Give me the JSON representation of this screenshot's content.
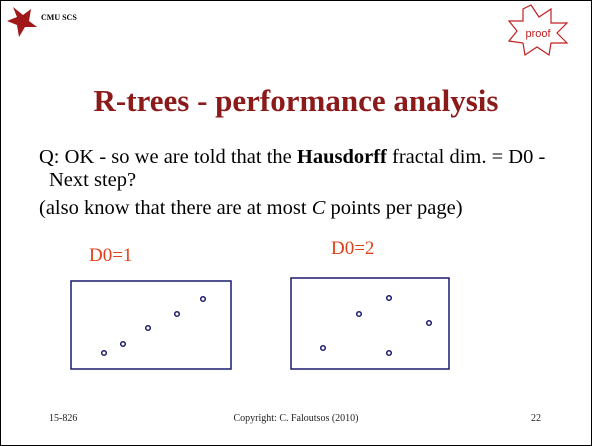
{
  "header": {
    "label": "CMU SCS",
    "stamp": "proof"
  },
  "title": "R-trees - performance analysis",
  "bullets": [
    {
      "before": "Q: OK - so we are told that the ",
      "bold": "Hausdorff",
      "after": " fractal dim. = D0 - Next step?"
    },
    {
      "before": "(also know that there are at most ",
      "italic": "C",
      "after": " points per page)"
    }
  ],
  "figures": [
    {
      "label": "D0=1"
    },
    {
      "label": "D0=2"
    }
  ],
  "footer": {
    "course": "15-826",
    "copyright": "Copyright: C. Faloutsos (2010)",
    "page": "22"
  }
}
